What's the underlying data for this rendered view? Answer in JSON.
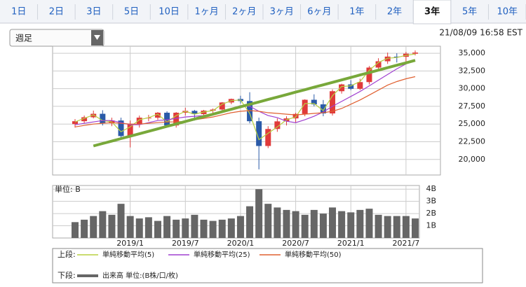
{
  "tabs": [
    {
      "label": "1日"
    },
    {
      "label": "2日"
    },
    {
      "label": "3日"
    },
    {
      "label": "5日"
    },
    {
      "label": "10日"
    },
    {
      "label": "1ヶ月"
    },
    {
      "label": "2ヶ月"
    },
    {
      "label": "3ヶ月"
    },
    {
      "label": "6ヶ月"
    },
    {
      "label": "1年"
    },
    {
      "label": "2年"
    },
    {
      "label": "3年",
      "active": true
    },
    {
      "label": "5年"
    },
    {
      "label": "10年"
    }
  ],
  "period_select": "週足",
  "timestamp": "21/08/09 16:58 EST",
  "chart_data": [
    {
      "type": "candlestick",
      "up_color": "#e03a3a",
      "down_color": "#2a5aa8",
      "grid": true,
      "ylim": [
        17800,
        36000
      ],
      "yticks": [
        {
          "value": 20000,
          "label": "20,000"
        },
        {
          "value": 22500,
          "label": "22,500"
        },
        {
          "value": 25000,
          "label": "25,000"
        },
        {
          "value": 27500,
          "label": "27,500"
        },
        {
          "value": 30000,
          "label": "30,000"
        },
        {
          "value": 32500,
          "label": "32,500"
        },
        {
          "value": 35000,
          "label": "35,000"
        }
      ],
      "open": [
        25000,
        25400,
        25960,
        26450,
        25100,
        25500,
        23300,
        25000,
        25900,
        25900,
        26600,
        24800,
        26600,
        26860,
        26400,
        26900,
        27050,
        28050,
        28540,
        28250,
        25400,
        21900,
        24300,
        25380,
        25800,
        26430,
        28430,
        27780,
        26500,
        29640,
        30600,
        29980,
        30930,
        32980,
        33870,
        34530,
        34500,
        34940
      ],
      "high": [
        25700,
        26200,
        26900,
        26950,
        25900,
        25900,
        25500,
        26200,
        26300,
        26700,
        26800,
        26700,
        27300,
        27000,
        27000,
        27200,
        28100,
        28600,
        29000,
        29500,
        25900,
        24700,
        25800,
        26100,
        26600,
        28500,
        29200,
        28400,
        29900,
        30700,
        31200,
        31400,
        33200,
        34300,
        35100,
        35000,
        35200,
        35400
      ],
      "low": [
        24500,
        25100,
        25800,
        24800,
        24700,
        22800,
        21700,
        24500,
        25400,
        25600,
        24500,
        24500,
        26200,
        25500,
        25900,
        26400,
        26800,
        27800,
        27900,
        25100,
        18600,
        21600,
        23900,
        24800,
        25200,
        26100,
        27500,
        26100,
        26200,
        29300,
        29800,
        29800,
        30600,
        32700,
        33500,
        33700,
        33800,
        34700
      ],
      "close": [
        25400,
        25960,
        26450,
        25100,
        25500,
        23300,
        25000,
        25900,
        25900,
        26600,
        24800,
        26600,
        26860,
        26400,
        26900,
        27050,
        28050,
        28540,
        28250,
        25400,
        21900,
        24300,
        25380,
        25800,
        26430,
        28430,
        27780,
        26500,
        29640,
        30600,
        29980,
        30930,
        32980,
        33870,
        34530,
        34500,
        34940,
        35100
      ],
      "ma": [
        {
          "name": "単純移動平均(5)",
          "color": "#b8d040",
          "values": [
            25300,
            25800,
            26300,
            25500,
            25300,
            23900,
            24600,
            25600,
            25900,
            26400,
            25300,
            26200,
            26800,
            26400,
            26700,
            26900,
            27800,
            28300,
            28400,
            26500,
            22800,
            23700,
            24600,
            25600,
            26000,
            27900,
            27900,
            26900,
            29000,
            30300,
            30400,
            31000,
            32600,
            33700,
            34300,
            34400,
            34700,
            34900
          ]
        },
        {
          "name": "単純移動平均(25)",
          "color": "#a040d0",
          "values": [
            24900,
            25100,
            25300,
            25500,
            25500,
            25200,
            24900,
            24900,
            25200,
            25500,
            25600,
            25800,
            26000,
            26100,
            26200,
            26400,
            26700,
            27200,
            27600,
            27500,
            26800,
            26200,
            25900,
            25400,
            25200,
            25600,
            26100,
            26700,
            27500,
            28200,
            28900,
            29600,
            30400,
            31200,
            32000,
            32800,
            33500,
            34000
          ]
        },
        {
          "name": "単純移動平均(50)",
          "color": "#e06030",
          "values": [
            24600,
            24800,
            25000,
            25100,
            25200,
            25100,
            25000,
            25000,
            25100,
            25200,
            25300,
            25300,
            25400,
            25600,
            25800,
            26000,
            26300,
            26600,
            26800,
            26900,
            26800,
            26600,
            26500,
            26400,
            26300,
            26400,
            26500,
            26600,
            26800,
            27200,
            27800,
            28400,
            29100,
            29800,
            30500,
            31000,
            31400,
            31700
          ]
        }
      ],
      "trend_line": {
        "color": "#78a83a",
        "values": [
          null,
          null,
          21900,
          22250,
          22590,
          22940,
          23280,
          23630,
          23970,
          24320,
          24670,
          25010,
          25360,
          25700,
          26050,
          26390,
          26740,
          27090,
          27430,
          27780,
          28120,
          28470,
          28810,
          29160,
          29510,
          29850,
          30200,
          30540,
          30890,
          31230,
          31580,
          31930,
          32270,
          32620,
          32960,
          33310,
          33650,
          34000
        ]
      },
      "legend_label": "上段:"
    },
    {
      "type": "bar",
      "unit_label": "単位: B",
      "grid": true,
      "categories": [
        null,
        null,
        null,
        null,
        null,
        null,
        "2019/1",
        null,
        null,
        null,
        null,
        null,
        "2019/7",
        null,
        null,
        null,
        null,
        null,
        "2020/1",
        null,
        null,
        null,
        null,
        null,
        "2020/7",
        null,
        null,
        null,
        null,
        null,
        "2021/1",
        null,
        null,
        null,
        null,
        null,
        "2021/7",
        null
      ],
      "ylim": [
        0,
        4.3
      ],
      "yticks": [
        {
          "value": 1,
          "label": "1B"
        },
        {
          "value": 2,
          "label": "2B"
        },
        {
          "value": 3,
          "label": "3B"
        },
        {
          "value": 4,
          "label": "4B"
        }
      ],
      "series": [
        {
          "name": "出来高 単位:(B株/口/枚)",
          "color": "#666666",
          "values": [
            1.3,
            1.5,
            1.8,
            2.2,
            1.9,
            2.8,
            1.8,
            1.6,
            1.7,
            1.4,
            1.8,
            1.5,
            1.6,
            1.9,
            1.5,
            1.4,
            1.5,
            1.6,
            1.8,
            2.6,
            4.0,
            2.8,
            2.5,
            2.3,
            2.2,
            1.9,
            2.3,
            2.0,
            2.5,
            2.2,
            2.1,
            2.3,
            2.4,
            1.9,
            1.8,
            1.8,
            1.8,
            1.6
          ]
        }
      ],
      "legend_label": "下段:"
    }
  ]
}
